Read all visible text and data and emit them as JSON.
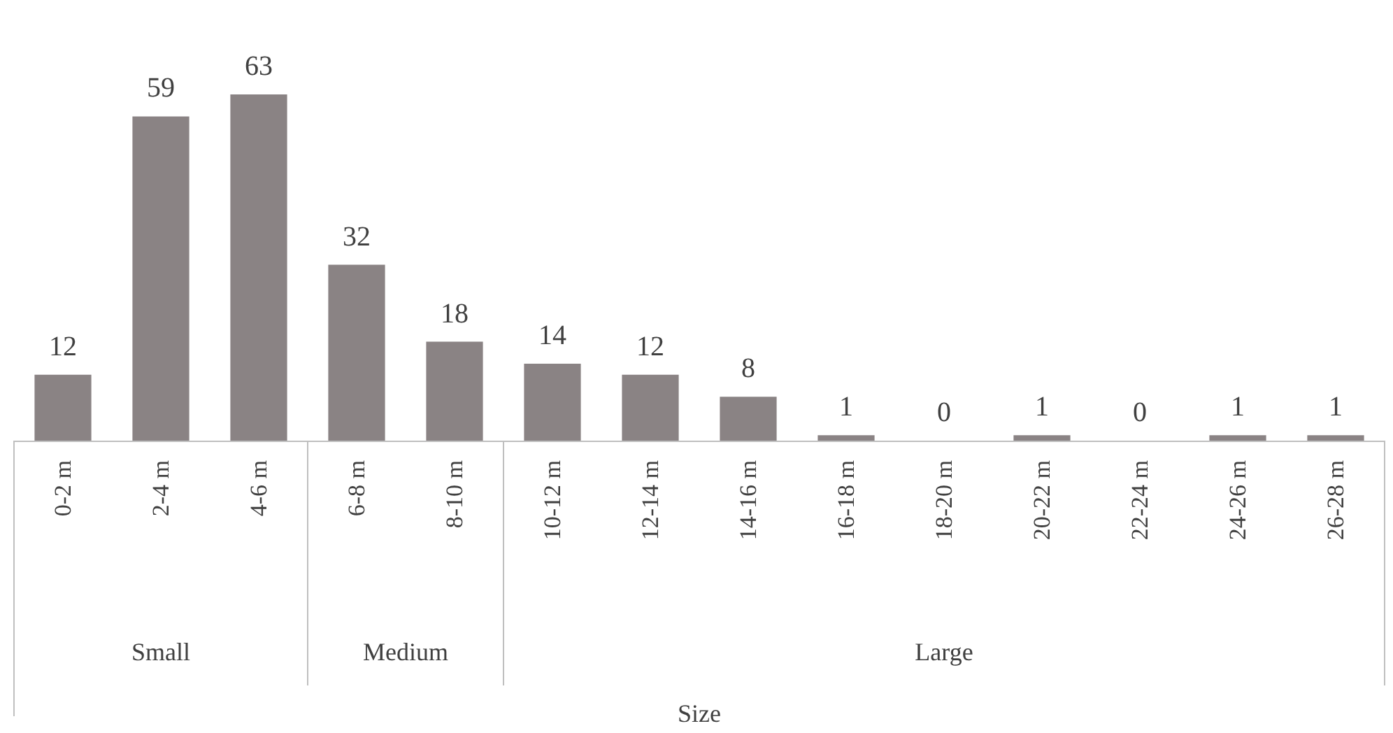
{
  "chart_data": {
    "type": "bar",
    "categories": [
      "0-2 m",
      "2-4 m",
      "4-6 m",
      "6-8 m",
      "8-10 m",
      "10-12 m",
      "12-14 m",
      "14-16 m",
      "16-18 m",
      "18-20 m",
      "20-22 m",
      "22-24 m",
      "24-26 m",
      "26-28 m"
    ],
    "values": [
      12,
      59,
      63,
      32,
      18,
      14,
      12,
      8,
      1,
      0,
      1,
      0,
      1,
      1
    ],
    "color": "#8a8384",
    "data_labels": true,
    "annotations": [
      "Small",
      "Medium",
      "Large",
      "Size"
    ]
  }
}
